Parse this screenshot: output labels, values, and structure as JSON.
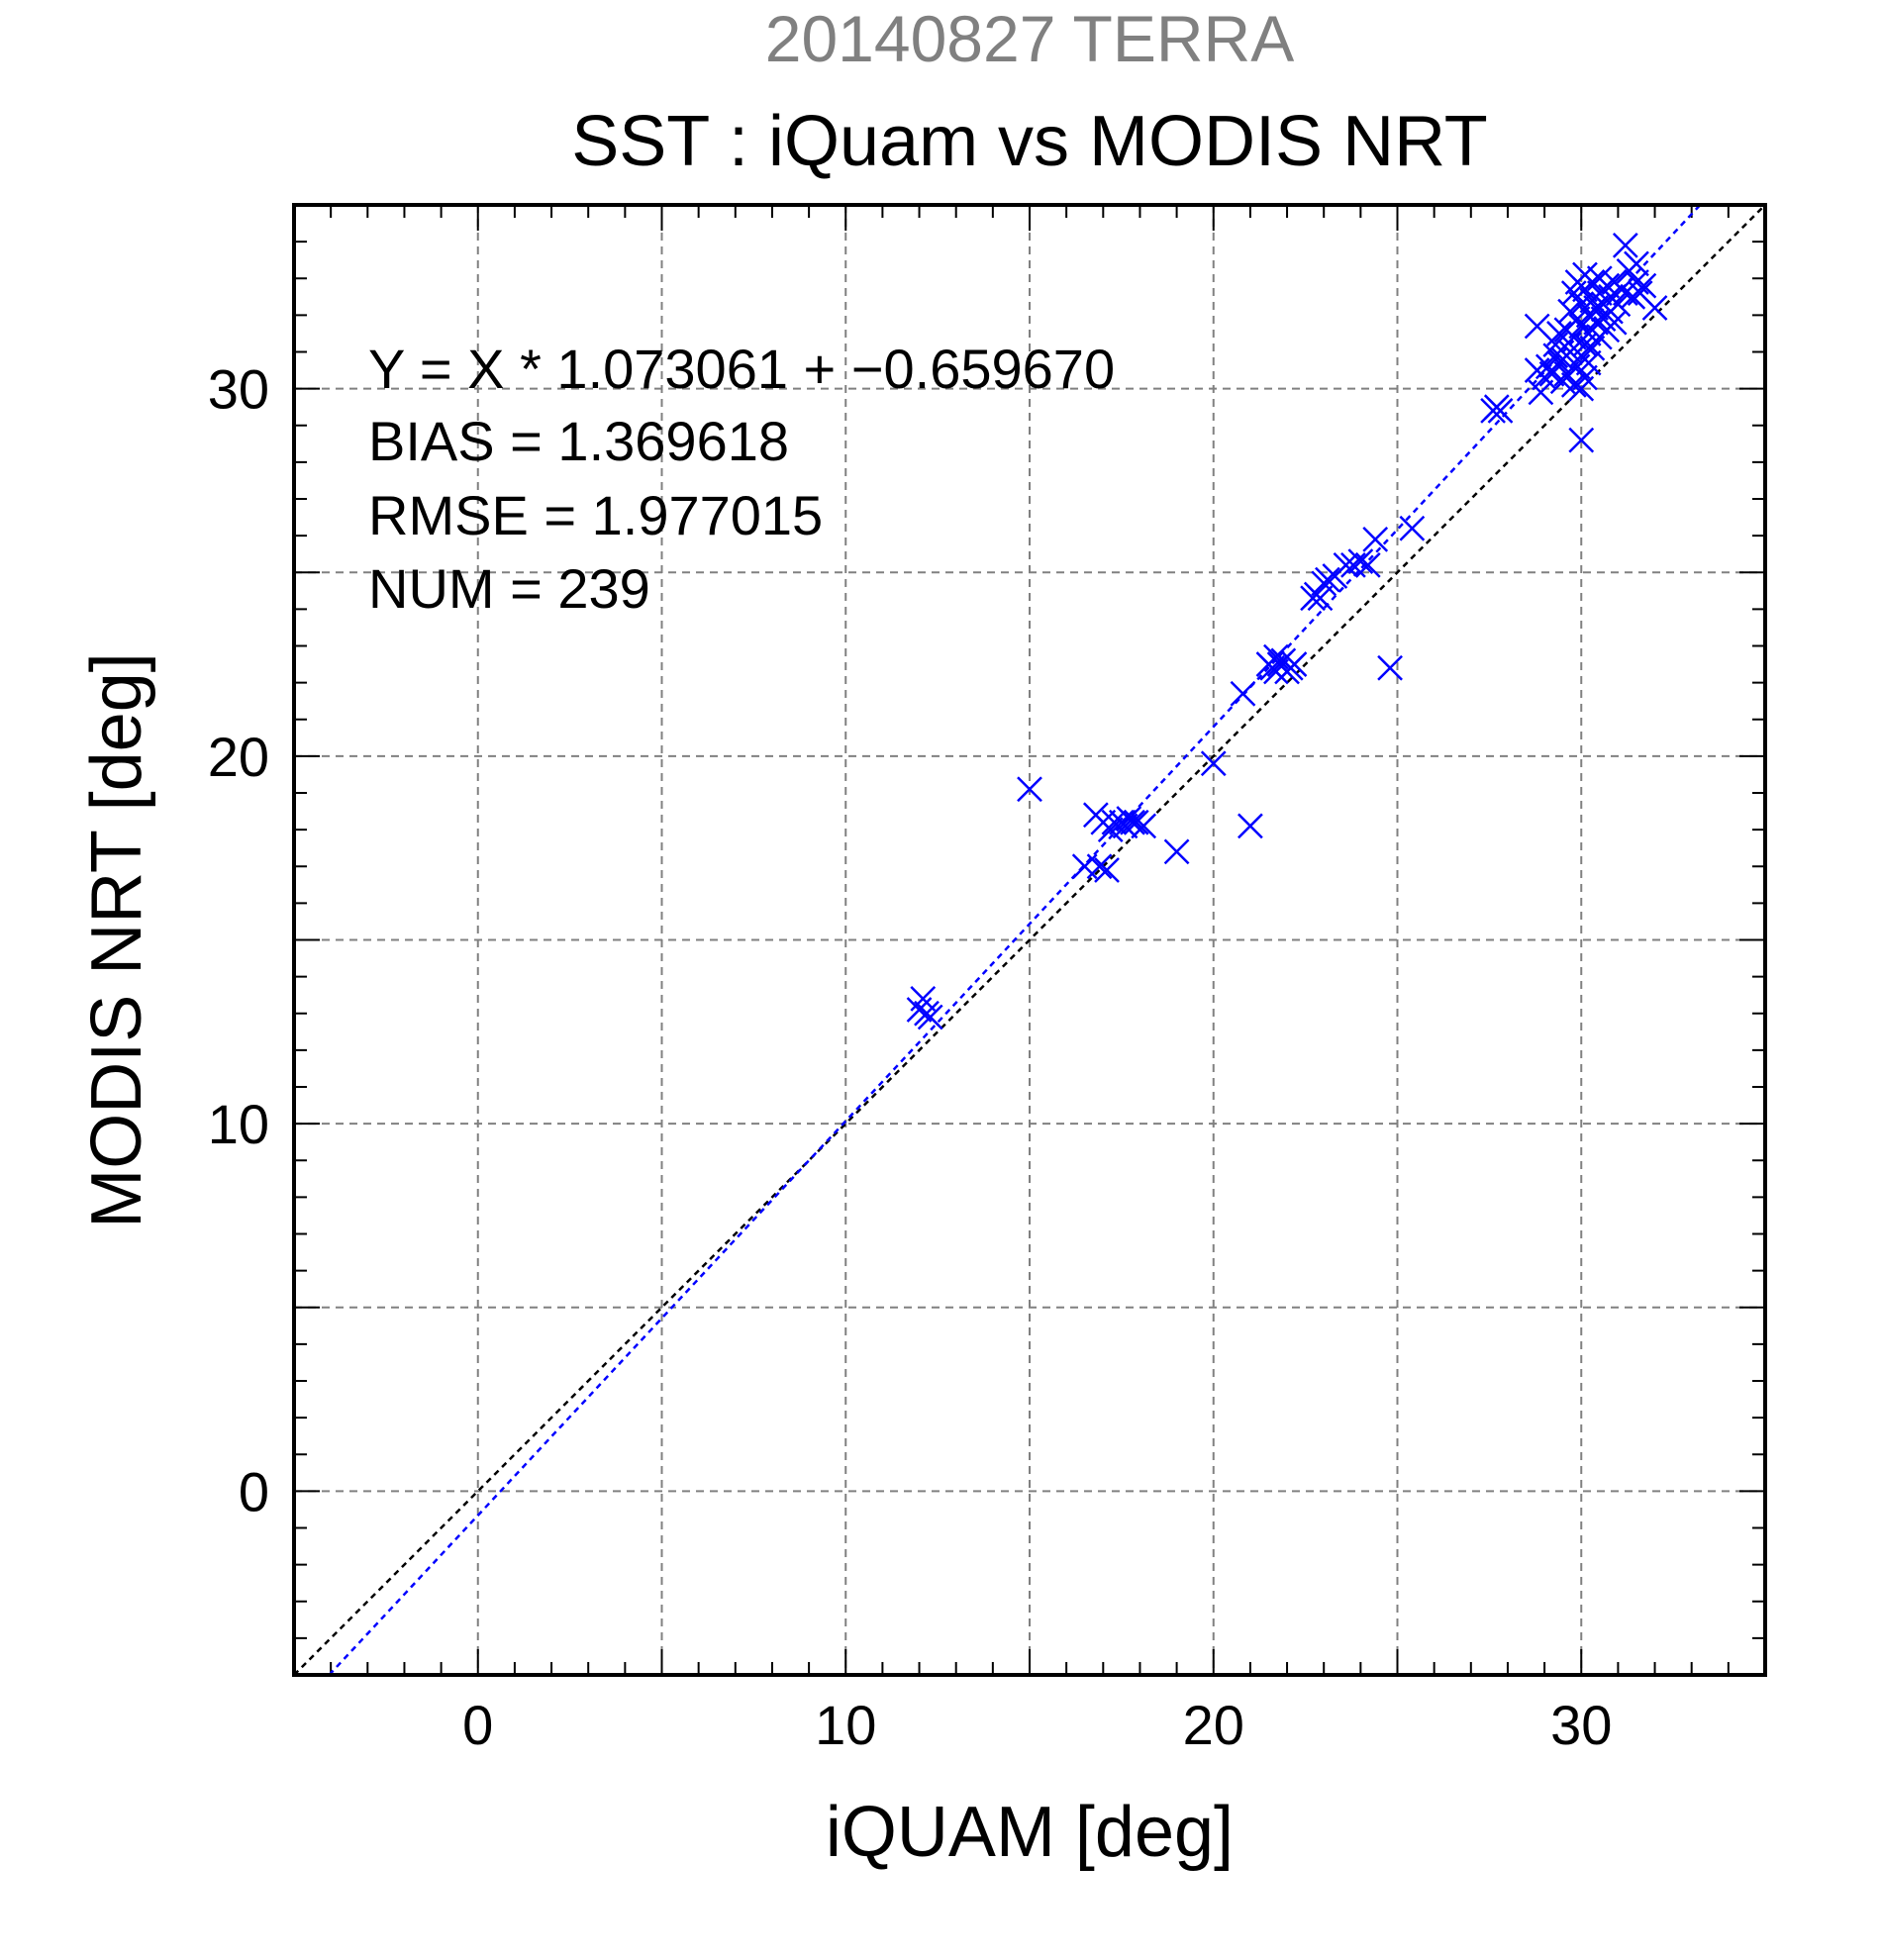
{
  "chart_data": {
    "type": "scatter",
    "title": "SST : iQuam vs MODIS NRT",
    "subtitle": "20140827 TERRA",
    "xlabel": "iQUAM [deg]",
    "ylabel": "MODIS NRT [deg]",
    "xlim": [
      -5,
      35
    ],
    "ylim": [
      -5,
      35
    ],
    "xticks": [
      0,
      10,
      20,
      30
    ],
    "yticks": [
      0,
      10,
      20,
      30
    ],
    "grid": true,
    "stats": {
      "equation": "Y = X * 1.073061 + −0.659670",
      "bias": "BIAS = 1.369618",
      "rmse": "RMSE = 1.977015",
      "num": "NUM = 239"
    },
    "fit_line": {
      "slope": 1.073061,
      "intercept": -0.65967
    },
    "identity_line": {
      "slope": 1,
      "intercept": 0
    },
    "points": [
      [
        12.0,
        13.1
      ],
      [
        12.1,
        13.4
      ],
      [
        12.3,
        12.9
      ],
      [
        12.2,
        13.0
      ],
      [
        15.0,
        19.1
      ],
      [
        16.5,
        17.0
      ],
      [
        16.8,
        18.4
      ],
      [
        16.9,
        17.0
      ],
      [
        17.0,
        18.2
      ],
      [
        17.1,
        16.9
      ],
      [
        17.2,
        18.0
      ],
      [
        17.3,
        18.2
      ],
      [
        17.5,
        18.2
      ],
      [
        17.6,
        18.1
      ],
      [
        17.7,
        18.3
      ],
      [
        17.8,
        18.2
      ],
      [
        17.9,
        18.2
      ],
      [
        18.1,
        18.1
      ],
      [
        19.0,
        17.4
      ],
      [
        20.0,
        19.8
      ],
      [
        20.8,
        21.7
      ],
      [
        21.0,
        18.1
      ],
      [
        21.5,
        22.5
      ],
      [
        21.6,
        22.4
      ],
      [
        21.7,
        22.7
      ],
      [
        21.7,
        22.3
      ],
      [
        21.8,
        22.5
      ],
      [
        21.9,
        22.6
      ],
      [
        22.0,
        22.3
      ],
      [
        22.1,
        22.4
      ],
      [
        22.2,
        22.5
      ],
      [
        22.7,
        24.3
      ],
      [
        22.8,
        24.4
      ],
      [
        22.9,
        24.3
      ],
      [
        23.0,
        24.7
      ],
      [
        23.1,
        24.8
      ],
      [
        23.3,
        24.9
      ],
      [
        23.6,
        25.2
      ],
      [
        23.8,
        25.2
      ],
      [
        24.0,
        25.3
      ],
      [
        24.2,
        25.2
      ],
      [
        24.4,
        25.9
      ],
      [
        24.8,
        22.4
      ],
      [
        25.4,
        26.2
      ],
      [
        27.6,
        29.4
      ],
      [
        27.7,
        29.5
      ],
      [
        27.8,
        29.4
      ],
      [
        28.8,
        31.7
      ],
      [
        28.8,
        30.5
      ],
      [
        28.9,
        29.9
      ],
      [
        29.0,
        30.3
      ],
      [
        29.1,
        30.6
      ],
      [
        29.2,
        30.4
      ],
      [
        29.3,
        30.9
      ],
      [
        29.3,
        31.2
      ],
      [
        29.4,
        30.7
      ],
      [
        29.4,
        31.5
      ],
      [
        29.5,
        30.2
      ],
      [
        29.5,
        30.8
      ],
      [
        29.6,
        31.6
      ],
      [
        29.6,
        30.4
      ],
      [
        29.7,
        32.1
      ],
      [
        29.7,
        31.0
      ],
      [
        29.8,
        30.1
      ],
      [
        29.8,
        32.6
      ],
      [
        29.8,
        31.4
      ],
      [
        29.9,
        30.6
      ],
      [
        29.9,
        31.9
      ],
      [
        29.9,
        32.9
      ],
      [
        30.0,
        28.6
      ],
      [
        30.0,
        30.0
      ],
      [
        30.0,
        30.9
      ],
      [
        30.0,
        31.7
      ],
      [
        30.0,
        32.3
      ],
      [
        30.1,
        30.3
      ],
      [
        30.1,
        31.2
      ],
      [
        30.1,
        32.7
      ],
      [
        30.1,
        33.1
      ],
      [
        30.2,
        31.5
      ],
      [
        30.2,
        32.0
      ],
      [
        30.2,
        30.7
      ],
      [
        30.3,
        32.4
      ],
      [
        30.3,
        31.1
      ],
      [
        30.3,
        32.9
      ],
      [
        30.4,
        31.8
      ],
      [
        30.4,
        32.2
      ],
      [
        30.5,
        31.4
      ],
      [
        30.5,
        32.6
      ],
      [
        30.5,
        33.0
      ],
      [
        30.6,
        31.9
      ],
      [
        30.6,
        32.3
      ],
      [
        30.7,
        32.8
      ],
      [
        30.7,
        31.6
      ],
      [
        30.8,
        32.1
      ],
      [
        30.8,
        32.5
      ],
      [
        30.9,
        32.9
      ],
      [
        30.9,
        31.8
      ],
      [
        31.0,
        32.3
      ],
      [
        31.1,
        32.7
      ],
      [
        31.2,
        32.6
      ],
      [
        31.2,
        33.9
      ],
      [
        31.3,
        33.2
      ],
      [
        31.4,
        32.5
      ],
      [
        31.5,
        32.9
      ],
      [
        31.5,
        33.4
      ],
      [
        31.6,
        32.6
      ],
      [
        31.7,
        32.8
      ],
      [
        32.0,
        32.2
      ]
    ]
  }
}
